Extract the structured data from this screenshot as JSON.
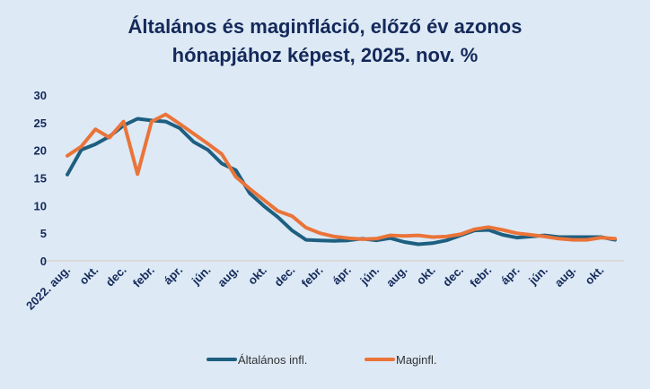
{
  "chart_data": {
    "type": "line",
    "title_line1": "Általános és maginfláció, előző év azonos",
    "title_line2": "hónapjához képest, 2025. nov. %",
    "xlabel": "",
    "ylabel": "",
    "ylim": [
      0,
      30
    ],
    "yticks": [
      "0",
      "5",
      "10",
      "15",
      "20",
      "25",
      "30"
    ],
    "xtick_labels": [
      "2022. aug.",
      "okt.",
      "dec.",
      "febr.",
      "ápr.",
      "jún.",
      "aug.",
      "okt.",
      "dec.",
      "febr.",
      "ápr.",
      "jún.",
      "aug.",
      "okt.",
      "dec.",
      "febr.",
      "ápr.",
      "jún.",
      "aug.",
      "okt."
    ],
    "legend_position": "bottom",
    "series": [
      {
        "name": "Általános infl.",
        "color": "#1d5f80",
        "values": [
          15.6,
          20.1,
          21.1,
          22.5,
          24.5,
          25.7,
          25.4,
          25.2,
          24.0,
          21.5,
          20.1,
          17.6,
          16.4,
          12.2,
          9.9,
          7.9,
          5.5,
          3.8,
          3.7,
          3.6,
          3.7,
          4.0,
          3.7,
          4.1,
          3.4,
          3.0,
          3.2,
          3.7,
          4.6,
          5.5,
          5.6,
          4.7,
          4.2,
          4.4,
          4.6,
          4.3,
          4.3,
          4.3,
          4.3,
          3.8
        ]
      },
      {
        "name": "Maginfl.",
        "color": "#ea7439",
        "values": [
          19.0,
          20.7,
          23.8,
          22.3,
          25.2,
          15.7,
          25.2,
          26.5,
          24.8,
          23.0,
          21.2,
          19.3,
          15.2,
          13.0,
          11.0,
          9.0,
          8.1,
          6.0,
          5.0,
          4.4,
          4.1,
          3.9,
          4.0,
          4.6,
          4.5,
          4.6,
          4.3,
          4.4,
          4.8,
          5.7,
          6.1,
          5.6,
          5.0,
          4.7,
          4.4,
          4.0,
          3.8,
          3.8,
          4.2,
          4.0
        ]
      }
    ]
  }
}
